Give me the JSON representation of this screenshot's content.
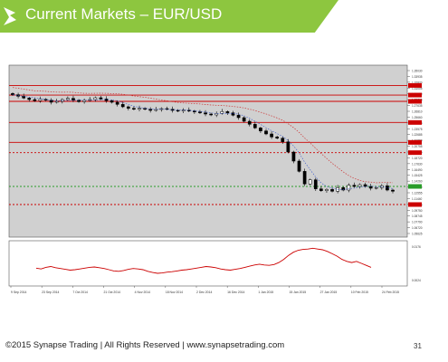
{
  "header": {
    "title": "Current Markets – EUR/USD",
    "logo_icon": "synapse-logo-icon",
    "accent_color": "#8dc63f"
  },
  "chart_data": {
    "type": "line",
    "title": "",
    "subtitle": "",
    "xlabel": "",
    "ylabel": "",
    "x_tick_labels": [
      "9 Sep 2014",
      "23 Sep 2014",
      "7 Oct 2014",
      "21 Oct 2014",
      "4 Nov 2014",
      "18 Nov 2014",
      "2 Dec 2014",
      "16 Dec 2014",
      "1 Jan 2015",
      "15 Jan 2015",
      "27 Jan 2015",
      "10 Feb 2015",
      "24 Feb 2015"
    ],
    "y_tick_labels": [
      "1.35030",
      "1.33935",
      "1.32820",
      "1.31005",
      "1.29550",
      "1.28705",
      "1.27635",
      "1.26810",
      "1.25660",
      "1.24950",
      "1.23575",
      "1.22685",
      "1.21890",
      "1.20755",
      "1.19715",
      "1.18720",
      "1.17630",
      "1.16490",
      "1.15425",
      "1.14260",
      "1.13700",
      "1.12555",
      "1.11440",
      "1.10345",
      "1.09750",
      "1.08745",
      "1.07790",
      "1.06720",
      "1.05625"
    ],
    "horizontal_levels": [
      {
        "value": 1.3114,
        "color": "#cc0000",
        "style": "solid"
      },
      {
        "value": 1.2954,
        "color": "#cc0000",
        "style": "solid"
      },
      {
        "value": 1.285,
        "color": "#cc0000",
        "style": "solid"
      },
      {
        "value": 1.25,
        "color": "#cc0000",
        "style": "solid"
      },
      {
        "value": 1.217,
        "color": "#cc0000",
        "style": "solid"
      },
      {
        "value": 1.2,
        "color": "#cc0000",
        "style": "dashed"
      },
      {
        "value": 1.144,
        "color": "#2a9d2a",
        "style": "dashed"
      },
      {
        "value": 1.114,
        "color": "#cc0000",
        "style": "dashed"
      }
    ],
    "price_close": [
      1.296,
      1.2935,
      1.2905,
      1.288,
      1.286,
      1.2885,
      1.287,
      1.2835,
      1.285,
      1.288,
      1.29,
      1.287,
      1.2845,
      1.2865,
      1.288,
      1.291,
      1.289,
      1.286,
      1.2835,
      1.28,
      1.276,
      1.2735,
      1.272,
      1.2735,
      1.272,
      1.27,
      1.2715,
      1.273,
      1.272,
      1.27,
      1.269,
      1.2705,
      1.269,
      1.2675,
      1.266,
      1.264,
      1.2625,
      1.265,
      1.268,
      1.266,
      1.262,
      1.258,
      1.252,
      1.247,
      1.241,
      1.236,
      1.231,
      1.226,
      1.224,
      1.218,
      1.201,
      1.186,
      1.169,
      1.148,
      1.155,
      1.14,
      1.137,
      1.139,
      1.136,
      1.142,
      1.138,
      1.146,
      1.144,
      1.147,
      1.144,
      1.141,
      1.142,
      1.145,
      1.138,
      1.136
    ],
    "oscillator": [
      0.38,
      0.36,
      0.4,
      0.42,
      0.39,
      0.37,
      0.35,
      0.33,
      0.34,
      0.36,
      0.38,
      0.4,
      0.41,
      0.39,
      0.37,
      0.34,
      0.31,
      0.3,
      0.32,
      0.35,
      0.37,
      0.36,
      0.34,
      0.3,
      0.27,
      0.25,
      0.26,
      0.28,
      0.29,
      0.31,
      0.33,
      0.34,
      0.36,
      0.38,
      0.4,
      0.42,
      0.41,
      0.39,
      0.36,
      0.34,
      0.33,
      0.35,
      0.37,
      0.4,
      0.43,
      0.46,
      0.48,
      0.46,
      0.45,
      0.47,
      0.52,
      0.6,
      0.7,
      0.78,
      0.83,
      0.85,
      0.86,
      0.88,
      0.86,
      0.84,
      0.8,
      0.74,
      0.68,
      0.6,
      0.55,
      0.52,
      0.55,
      0.5,
      0.45,
      0.4
    ],
    "oscillator_levels": [
      "0.0176",
      "0.0024"
    ],
    "grid": false,
    "colors": {
      "price": "#000000",
      "ma_fast": "#3355cc",
      "ma_slow": "#cc3333",
      "oscillator": "#cc0000",
      "plot_bg": "#d0d0d0"
    }
  },
  "footer": {
    "copyright": "©2015 Synapse Trading | All Rights Reserved | www.synapsetrading.com",
    "page_number": "31"
  }
}
